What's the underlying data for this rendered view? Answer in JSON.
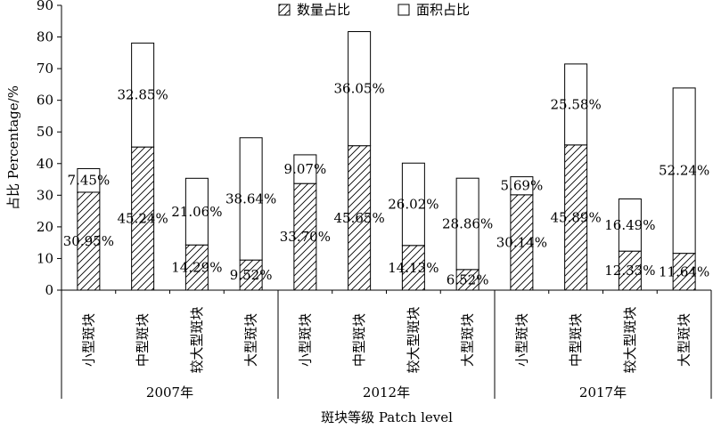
{
  "chart_data": {
    "type": "bar",
    "stacked": true,
    "title": "",
    "ylabel": "占比 Percentage/%",
    "xlabel": "斑块等级 Patch level",
    "ylim": [
      0,
      90
    ],
    "yticks": [
      "0",
      "10",
      "20",
      "30",
      "40",
      "50",
      "60",
      "70",
      "80",
      "90"
    ],
    "legend_position": "top",
    "groups": [
      {
        "label": "2007年",
        "categories": [
          "小型斑块",
          "中型斑块",
          "较大型斑块",
          "大型斑块"
        ]
      },
      {
        "label": "2012年",
        "categories": [
          "小型斑块",
          "中型斑块",
          "较大型斑块",
          "大型斑块"
        ]
      },
      {
        "label": "2017年",
        "categories": [
          "小型斑块",
          "中型斑块",
          "较大型斑块",
          "大型斑块"
        ]
      }
    ],
    "series": [
      {
        "name": "数量占比",
        "pattern": "diagonal-hatch",
        "values": [
          30.95,
          45.24,
          14.29,
          9.52,
          33.7,
          45.65,
          14.13,
          6.52,
          30.14,
          45.89,
          12.33,
          11.64
        ],
        "labels": [
          "30.95%",
          "45.24%",
          "14.29%",
          "9.52%",
          "33.70%",
          "45.65%",
          "14.13%",
          "6.52%",
          "30.14%",
          "45.89%",
          "12.33%",
          "11.64%"
        ]
      },
      {
        "name": "面积占比",
        "pattern": "white",
        "values": [
          7.45,
          32.85,
          21.06,
          38.64,
          9.07,
          36.05,
          26.02,
          28.86,
          5.69,
          25.58,
          16.49,
          52.24
        ],
        "labels": [
          "7.45%",
          "32.85%",
          "21.06%",
          "38.64%",
          "9.07%",
          "36.05%",
          "26.02%",
          "28.86%",
          "5.69%",
          "25.58%",
          "16.49%",
          "52.24%"
        ]
      }
    ],
    "colors": {
      "stroke": "#000000",
      "fill": "#ffffff",
      "hatch": "#000000"
    }
  }
}
